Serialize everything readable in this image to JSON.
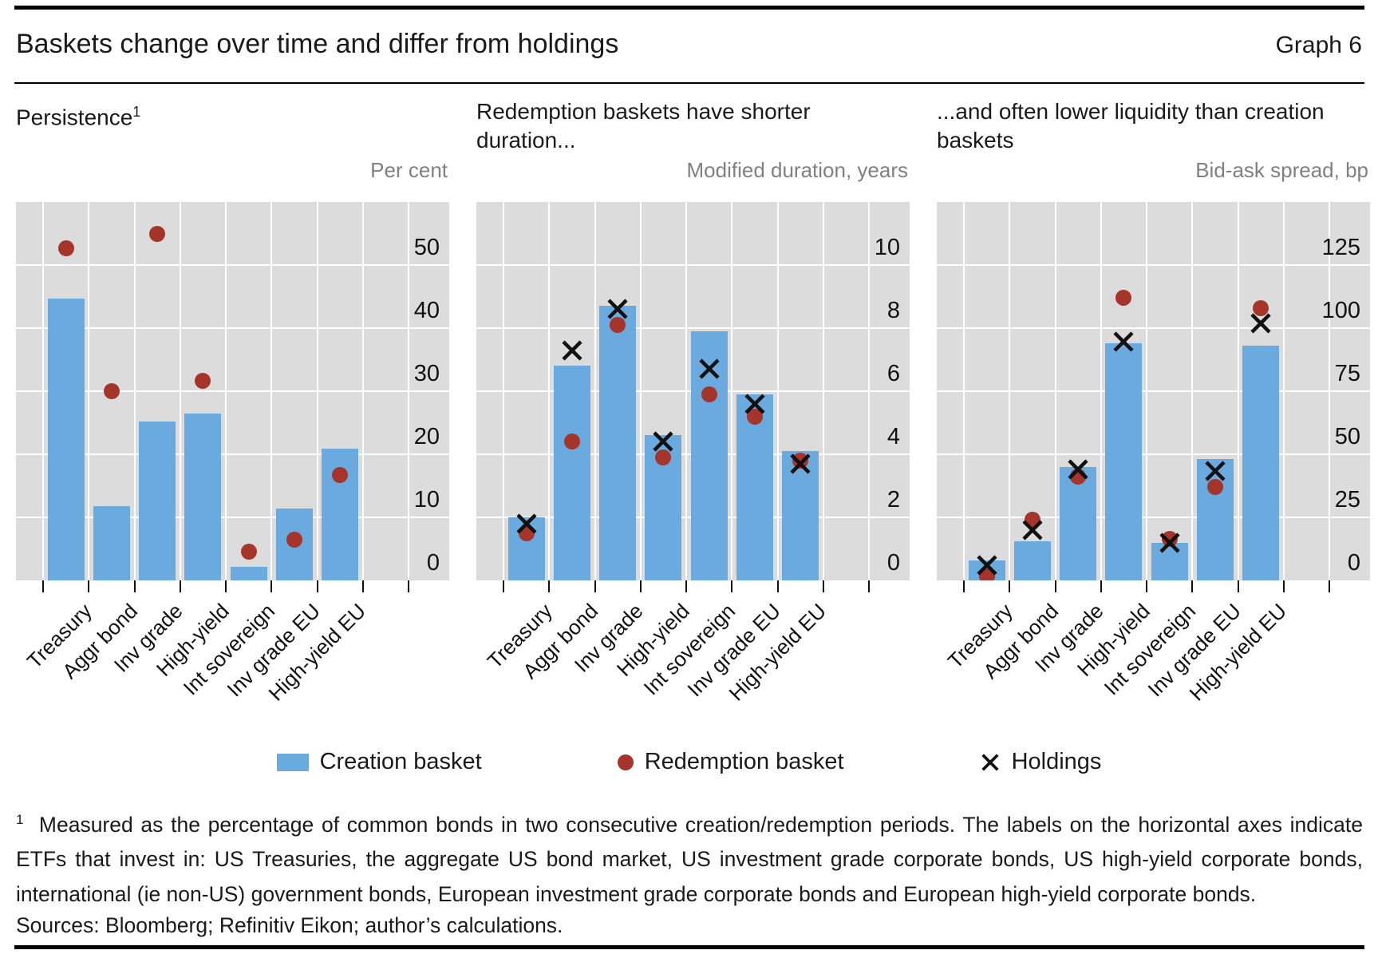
{
  "header": {
    "title": "Baskets change over time and differ from holdings",
    "graph_label": "Graph 6"
  },
  "legend": [
    {
      "marker": "bar",
      "label": "Creation basket"
    },
    {
      "marker": "dot",
      "label": "Redemption basket"
    },
    {
      "marker": "x",
      "label": "Holdings"
    }
  ],
  "footnote": {
    "superscript": "1",
    "text": "Measured as the percentage of common bonds in two consecutive creation/redemption periods. The labels on the horizontal axes indicate ETFs that invest in: US Treasuries, the aggregate US bond market, US investment grade corporate bonds, US high-yield corporate bonds, international (ie non-US) government bonds, European investment grade corporate bonds and European high-yield corporate bonds.",
    "sources": "Sources: Bloomberg; Refinitiv Eikon; author’s calculations."
  },
  "colors": {
    "creation_basket_bar": "#6aaade",
    "redemption_basket_dot": "#a5342b",
    "holdings_x": "#111111",
    "panel_background": "#dcdcdc",
    "gridline": "#ffffff",
    "unit_text": "#808080"
  },
  "chart_data": [
    {
      "type": "bar",
      "title": "Persistence",
      "title_sup": "1",
      "unit": "Per cent",
      "categories": [
        "Treasury",
        "Aggr bond",
        "Inv grade",
        "High-yield",
        "Int sovereign",
        "Inv grade EU",
        "High-yield EU"
      ],
      "ylim": [
        0,
        60
      ],
      "yticks": [
        0,
        10,
        20,
        30,
        40,
        50
      ],
      "grid_step": 10,
      "series": [
        {
          "name": "Creation basket",
          "type": "bar",
          "values": [
            44.7,
            11.8,
            25.2,
            26.5,
            2.2,
            11.4,
            20.9
          ]
        },
        {
          "name": "Redemption basket",
          "type": "dot",
          "values": [
            52.6,
            30.0,
            55.0,
            31.7,
            4.5,
            6.5,
            16.7
          ]
        }
      ]
    },
    {
      "type": "bar",
      "title": "Redemption baskets have shorter duration...",
      "title_sup": "",
      "unit": "Modified duration, years",
      "categories": [
        "Treasury",
        "Aggr bond",
        "Inv grade",
        "High-yield",
        "Int sovereign",
        "Inv grade EU",
        "High-yield EU"
      ],
      "ylim": [
        0,
        12
      ],
      "yticks": [
        0,
        2,
        4,
        6,
        8,
        10
      ],
      "grid_step": 2,
      "series": [
        {
          "name": "Creation basket",
          "type": "bar",
          "values": [
            2.0,
            6.8,
            8.7,
            4.6,
            7.9,
            5.9,
            4.1
          ]
        },
        {
          "name": "Redemption basket",
          "type": "dot",
          "values": [
            1.5,
            4.4,
            8.1,
            3.9,
            5.9,
            5.2,
            3.8
          ]
        },
        {
          "name": "Holdings",
          "type": "x",
          "values": [
            1.8,
            7.3,
            8.6,
            4.4,
            6.7,
            5.6,
            3.7
          ]
        }
      ]
    },
    {
      "type": "bar",
      "title": "...and often lower liquidity than creation baskets",
      "title_sup": "",
      "unit": "Bid-ask spread, bp",
      "categories": [
        "Treasury",
        "Aggr bond",
        "Inv grade",
        "High-yield",
        "Int sovereign",
        "Inv grade EU",
        "High-yield EU"
      ],
      "ylim": [
        0,
        150
      ],
      "yticks": [
        0,
        25,
        50,
        75,
        100,
        125
      ],
      "grid_step": 25,
      "series": [
        {
          "name": "Creation basket",
          "type": "bar",
          "values": [
            8,
            15.5,
            45,
            94,
            15,
            48,
            93
          ]
        },
        {
          "name": "Redemption basket",
          "type": "dot",
          "values": [
            1.5,
            24,
            41,
            112,
            16.5,
            37,
            108
          ]
        },
        {
          "name": "Holdings",
          "type": "x",
          "values": [
            6,
            20,
            44,
            94.5,
            15,
            43.5,
            102
          ]
        }
      ]
    }
  ]
}
